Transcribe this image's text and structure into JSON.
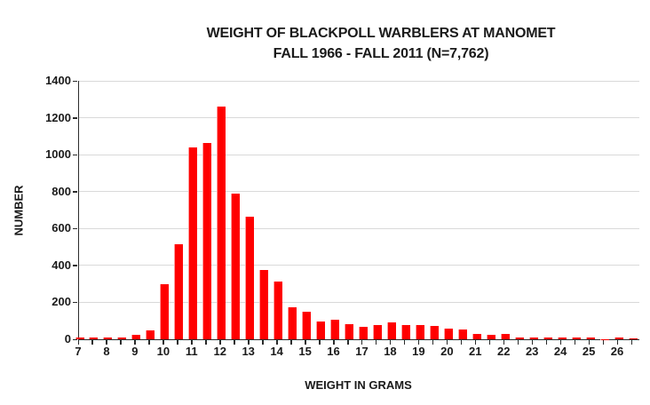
{
  "title": {
    "line1": "WEIGHT OF BLACKPOLL WARBLERS AT MANOMET",
    "line2": "FALL 1966 - FALL 2011 (N=7,762)"
  },
  "chart_data": {
    "type": "bar",
    "title": "WEIGHT OF BLACKPOLL WARBLERS AT MANOMET",
    "subtitle": "FALL 1966 - FALL 2011 (N=7,762)",
    "xlabel": "WEIGHT IN GRAMS",
    "ylabel": "NUMBER",
    "n_total": "7,762",
    "ylim": [
      0,
      1400
    ],
    "ytick_step": 200,
    "yticks": [
      0,
      200,
      400,
      600,
      800,
      1000,
      1200,
      1400
    ],
    "xtick_labels": [
      7,
      8,
      9,
      10,
      11,
      12,
      13,
      14,
      15,
      16,
      17,
      18,
      19,
      20,
      21,
      22,
      23,
      24,
      25,
      26
    ],
    "grid": true,
    "legend": false,
    "bar_color": "#ff0000",
    "bar_highlight_color": "#ff9e9e",
    "gridline_color": "#d9d9d9",
    "axis_color": "#2b2b2b",
    "x": [
      7,
      7.5,
      8,
      8.5,
      9,
      9.5,
      10,
      10.5,
      11,
      11.5,
      12,
      12.5,
      13,
      13.5,
      14,
      14.5,
      15,
      15.5,
      16,
      16.5,
      17,
      17.5,
      18,
      18.5,
      19,
      19.5,
      20,
      20.5,
      21,
      21.5,
      22,
      22.5,
      23,
      23.5,
      24,
      24.5,
      25,
      25.5,
      26,
      26.5
    ],
    "values": [
      8,
      10,
      8,
      10,
      22,
      46,
      296,
      514,
      1038,
      1063,
      1260,
      788,
      664,
      376,
      314,
      174,
      149,
      96,
      107,
      83,
      68,
      76,
      90,
      76,
      78,
      71,
      60,
      53,
      31,
      25,
      31,
      12,
      8,
      8,
      11,
      8,
      11,
      2,
      10,
      7
    ]
  }
}
